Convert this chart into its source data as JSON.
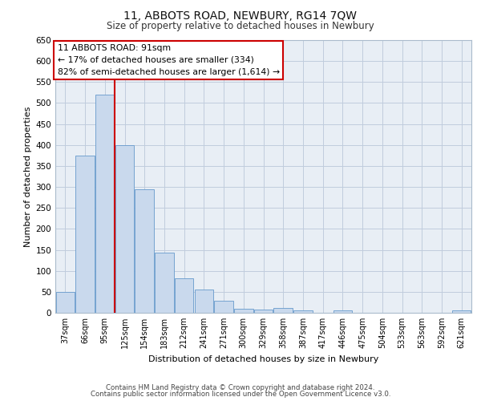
{
  "title": "11, ABBOTS ROAD, NEWBURY, RG14 7QW",
  "subtitle": "Size of property relative to detached houses in Newbury",
  "xlabel": "Distribution of detached houses by size in Newbury",
  "ylabel": "Number of detached properties",
  "categories": [
    "37sqm",
    "66sqm",
    "95sqm",
    "125sqm",
    "154sqm",
    "183sqm",
    "212sqm",
    "241sqm",
    "271sqm",
    "300sqm",
    "329sqm",
    "358sqm",
    "387sqm",
    "417sqm",
    "446sqm",
    "475sqm",
    "504sqm",
    "533sqm",
    "563sqm",
    "592sqm",
    "621sqm"
  ],
  "values": [
    50,
    375,
    520,
    400,
    295,
    143,
    83,
    55,
    28,
    10,
    8,
    12,
    5,
    0,
    5,
    0,
    0,
    0,
    0,
    0,
    5
  ],
  "bar_color": "#c9d9ed",
  "bar_edge_color": "#6699cc",
  "grid_color": "#c0ccdd",
  "background_color": "#e8eef5",
  "red_line_index": 2,
  "annotation_text": "11 ABBOTS ROAD: 91sqm\n← 17% of detached houses are smaller (334)\n82% of semi-detached houses are larger (1,614) →",
  "annotation_box_color": "#ffffff",
  "annotation_border_color": "#cc0000",
  "footer_line1": "Contains HM Land Registry data © Crown copyright and database right 2024.",
  "footer_line2": "Contains public sector information licensed under the Open Government Licence v3.0.",
  "ylim": [
    0,
    650
  ],
  "yticks": [
    0,
    50,
    100,
    150,
    200,
    250,
    300,
    350,
    400,
    450,
    500,
    550,
    600,
    650
  ]
}
